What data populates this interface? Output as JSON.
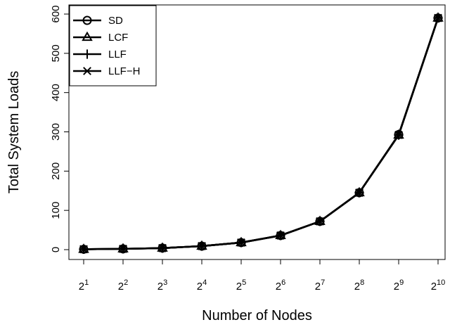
{
  "chart_data": {
    "type": "line",
    "title": "",
    "xlabel": "Number of Nodes",
    "ylabel": "Total System Loads",
    "x_base": "2",
    "x_exponents": [
      "1",
      "2",
      "3",
      "4",
      "5",
      "6",
      "7",
      "8",
      "9",
      "10"
    ],
    "x": [
      2,
      4,
      8,
      16,
      32,
      64,
      128,
      256,
      512,
      1024
    ],
    "ylim": [
      0,
      600
    ],
    "yticks": [
      0,
      100,
      200,
      300,
      400,
      500,
      600
    ],
    "grid": false,
    "legend_position": "top-left",
    "series": [
      {
        "name": "SD",
        "marker": "circle",
        "values": [
          1,
          2,
          4,
          9,
          18,
          36,
          72,
          145,
          293,
          590
        ]
      },
      {
        "name": "LCF",
        "marker": "triangle",
        "values": [
          1,
          2,
          4,
          9,
          18,
          36,
          72,
          145,
          292,
          590
        ]
      },
      {
        "name": "LLF",
        "marker": "plus",
        "values": [
          1,
          2,
          4,
          9,
          18,
          36,
          72,
          145,
          292,
          590
        ]
      },
      {
        "name": "LLF−H",
        "marker": "cross",
        "values": [
          1,
          2,
          4,
          9,
          18,
          36,
          72,
          145,
          292,
          590
        ]
      }
    ],
    "colors": {
      "line": "#000000",
      "background": "#ffffff"
    }
  }
}
